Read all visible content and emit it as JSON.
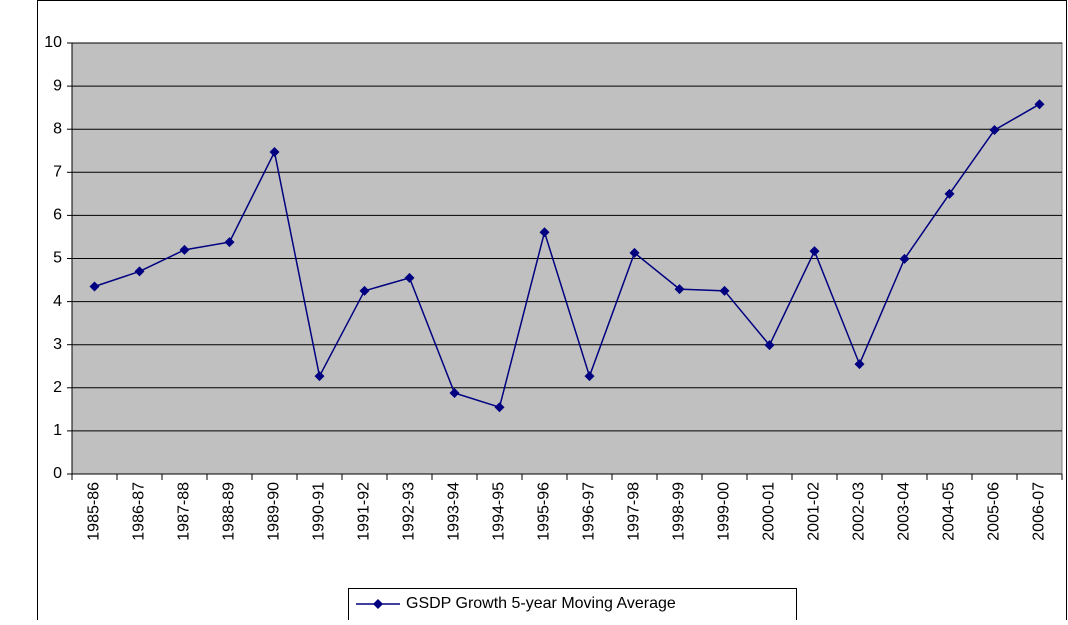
{
  "chart_data": {
    "type": "line",
    "categories": [
      "1985-86",
      "1986-87",
      "1987-88",
      "1988-89",
      "1989-90",
      "1990-91",
      "1991-92",
      "1992-93",
      "1993-94",
      "1994-95",
      "1995-96",
      "1996-97",
      "1997-98",
      "1998-99",
      "1999-00",
      "2000-01",
      "2001-02",
      "2002-03",
      "2003-04",
      "2004-05",
      "2005-06",
      "2006-07"
    ],
    "series": [
      {
        "name": "GSDP Growth 5-year Moving Average",
        "color": "#000080",
        "values": [
          4.35,
          4.7,
          5.2,
          5.38,
          7.47,
          2.27,
          4.25,
          4.55,
          1.88,
          1.55,
          5.61,
          2.27,
          5.13,
          4.29,
          4.25,
          2.99,
          5.17,
          2.55,
          4.99,
          6.5,
          7.98,
          8.58
        ]
      }
    ],
    "ylim": [
      0,
      10
    ],
    "yticks": [
      0,
      1,
      2,
      3,
      4,
      5,
      6,
      7,
      8,
      9,
      10
    ],
    "grid": true,
    "legend": "bottom"
  }
}
